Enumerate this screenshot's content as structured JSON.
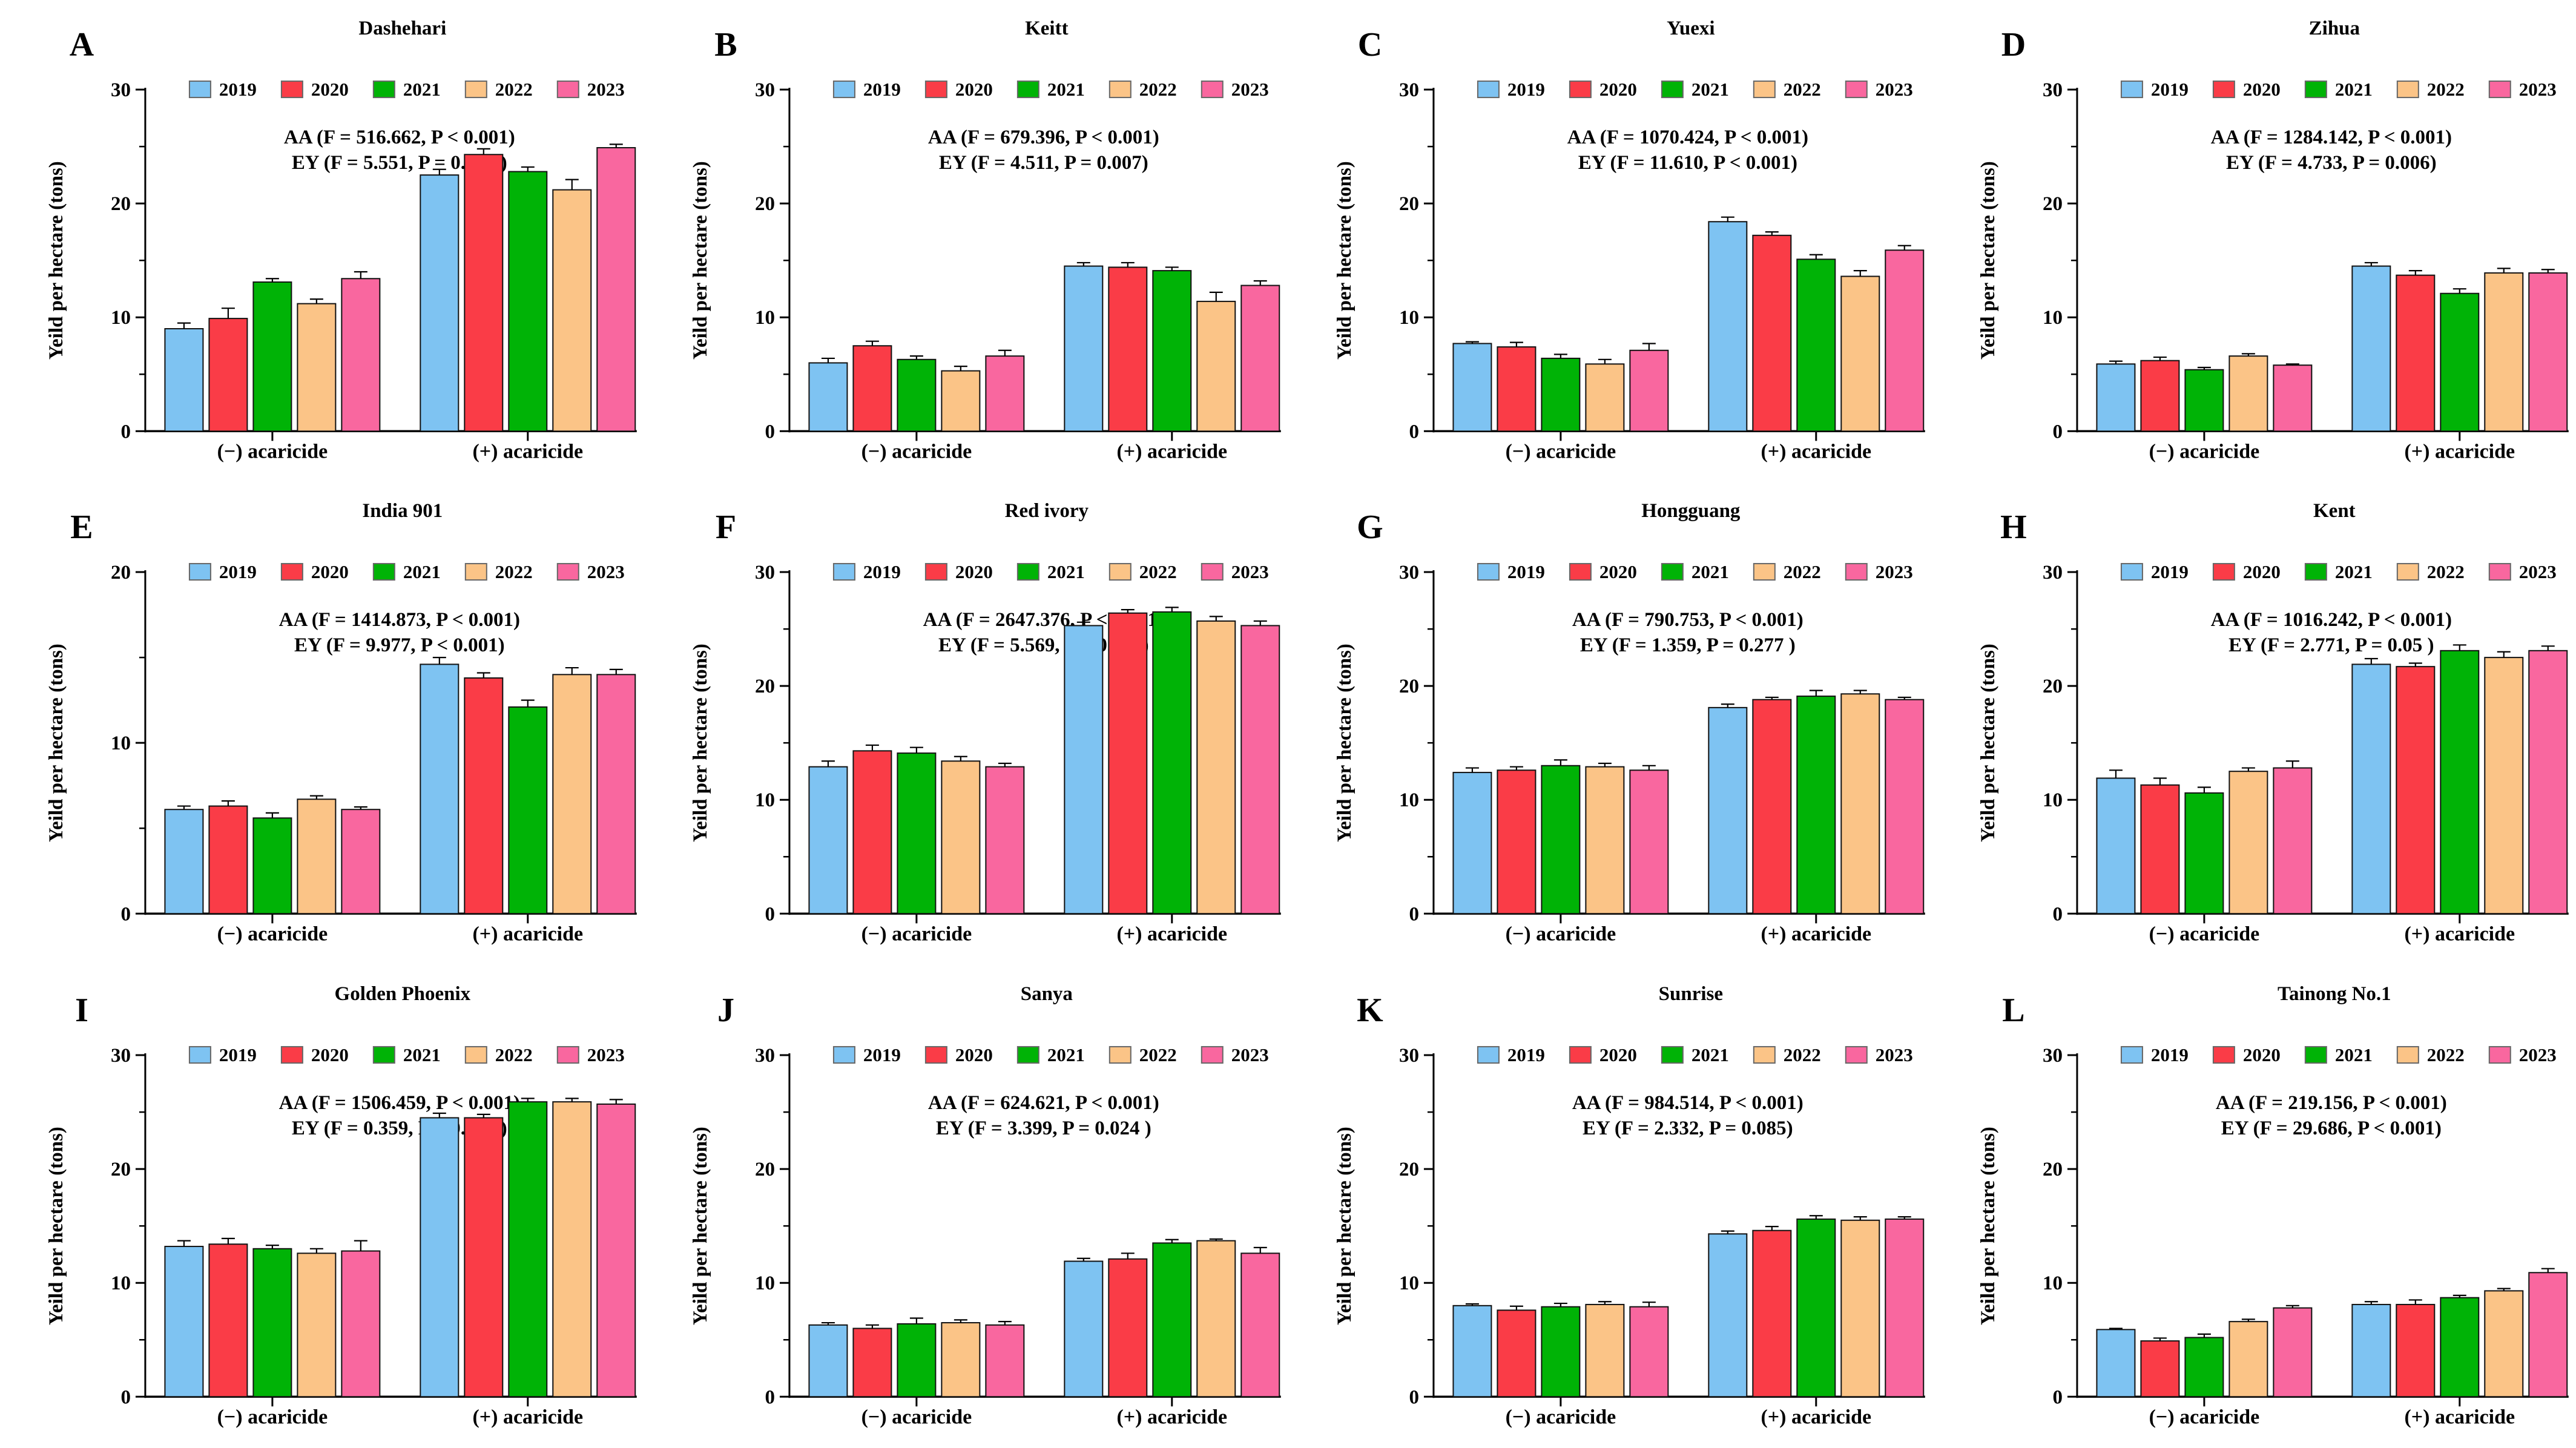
{
  "figure": {
    "y_axis_label": "Yeild per hectare (tons)",
    "x_categories": [
      "(−) acaricide",
      "(+) acaricide"
    ],
    "group_keys": [
      "minus",
      "plus"
    ],
    "legend_years": [
      "2019",
      "2020",
      "2021",
      "2022",
      "2023"
    ],
    "legend_position": "top",
    "grid_lines": "off",
    "colors": {
      "2019": "#7EC3F2",
      "2020": "#FA3C47",
      "2021": "#00B306",
      "2022": "#FBC487",
      "2023": "#F9679F"
    },
    "bar_border_color": "#111111",
    "error_bar_color": "#000000"
  },
  "chart_data": [
    {
      "type": "bar",
      "panel_letter": "A",
      "title": "Dashehari",
      "annotation_line1": "AA (F = 516.662, P < 0.001)",
      "annotation_line2": "EY (F = 5.551, P = 0.003 )",
      "categories": [
        "(−) acaricide",
        "(+) acaricide"
      ],
      "series": [
        {
          "name": "2019",
          "values": [
            9.0,
            22.5
          ],
          "errors": [
            0.5,
            0.5
          ]
        },
        {
          "name": "2020",
          "values": [
            9.9,
            24.3
          ],
          "errors": [
            0.9,
            0.5
          ]
        },
        {
          "name": "2021",
          "values": [
            13.1,
            22.8
          ],
          "errors": [
            0.3,
            0.4
          ]
        },
        {
          "name": "2022",
          "values": [
            11.2,
            21.2
          ],
          "errors": [
            0.4,
            0.9
          ]
        },
        {
          "name": "2023",
          "values": [
            13.4,
            24.9
          ],
          "errors": [
            0.6,
            0.3
          ]
        }
      ],
      "ylabel": "Yeild per hectare (tons)",
      "ylim": [
        0,
        30
      ],
      "yticks": [
        0,
        10,
        20,
        30
      ]
    },
    {
      "type": "bar",
      "panel_letter": "B",
      "title": "Keitt",
      "annotation_line1": "AA (F = 679.396, P < 0.001)",
      "annotation_line2": "EY (F = 4.511, P = 0.007)",
      "categories": [
        "(−) acaricide",
        "(+) acaricide"
      ],
      "series": [
        {
          "name": "2019",
          "values": [
            6.0,
            14.5
          ],
          "errors": [
            0.4,
            0.3
          ]
        },
        {
          "name": "2020",
          "values": [
            7.5,
            14.4
          ],
          "errors": [
            0.4,
            0.4
          ]
        },
        {
          "name": "2021",
          "values": [
            6.3,
            14.1
          ],
          "errors": [
            0.3,
            0.3
          ]
        },
        {
          "name": "2022",
          "values": [
            5.3,
            11.4
          ],
          "errors": [
            0.4,
            0.8
          ]
        },
        {
          "name": "2023",
          "values": [
            6.6,
            12.8
          ],
          "errors": [
            0.5,
            0.4
          ]
        }
      ],
      "ylabel": "Yeild per hectare (tons)",
      "ylim": [
        0,
        30
      ],
      "yticks": [
        0,
        10,
        20,
        30
      ]
    },
    {
      "type": "bar",
      "panel_letter": "C",
      "title": "Yuexi",
      "annotation_line1": "AA (F = 1070.424, P < 0.001)",
      "annotation_line2": "EY (F = 11.610, P < 0.001)",
      "categories": [
        "(−) acaricide",
        "(+) acaricide"
      ],
      "series": [
        {
          "name": "2019",
          "values": [
            7.7,
            18.4
          ],
          "errors": [
            0.15,
            0.4
          ]
        },
        {
          "name": "2020",
          "values": [
            7.4,
            17.2
          ],
          "errors": [
            0.4,
            0.3
          ]
        },
        {
          "name": "2021",
          "values": [
            6.4,
            15.1
          ],
          "errors": [
            0.35,
            0.4
          ]
        },
        {
          "name": "2022",
          "values": [
            5.9,
            13.6
          ],
          "errors": [
            0.4,
            0.5
          ]
        },
        {
          "name": "2023",
          "values": [
            7.1,
            15.9
          ],
          "errors": [
            0.6,
            0.4
          ]
        }
      ],
      "ylabel": "Yeild per hectare (tons)",
      "ylim": [
        0,
        30
      ],
      "yticks": [
        0,
        10,
        20,
        30
      ]
    },
    {
      "type": "bar",
      "panel_letter": "D",
      "title": "Zihua",
      "annotation_line1": "AA (F = 1284.142, P < 0.001)",
      "annotation_line2": "EY (F = 4.733, P = 0.006)",
      "categories": [
        "(−) acaricide",
        "(+) acaricide"
      ],
      "series": [
        {
          "name": "2019",
          "values": [
            5.9,
            14.5
          ],
          "errors": [
            0.25,
            0.3
          ]
        },
        {
          "name": "2020",
          "values": [
            6.2,
            13.7
          ],
          "errors": [
            0.3,
            0.4
          ]
        },
        {
          "name": "2021",
          "values": [
            5.4,
            12.1
          ],
          "errors": [
            0.2,
            0.4
          ]
        },
        {
          "name": "2022",
          "values": [
            6.6,
            13.9
          ],
          "errors": [
            0.2,
            0.4
          ]
        },
        {
          "name": "2023",
          "values": [
            5.8,
            13.9
          ],
          "errors": [
            0.1,
            0.3
          ]
        }
      ],
      "ylabel": "Yeild per hectare (tons)",
      "ylim": [
        0,
        30
      ],
      "yticks": [
        0,
        10,
        20,
        30
      ]
    },
    {
      "type": "bar",
      "panel_letter": "E",
      "title": "India 901",
      "annotation_line1": "AA (F = 1414.873, P < 0.001)",
      "annotation_line2": "EY (F = 9.977, P < 0.001)",
      "categories": [
        "(−) acaricide",
        "(+) acaricide"
      ],
      "series": [
        {
          "name": "2019",
          "values": [
            6.1,
            14.6
          ],
          "errors": [
            0.2,
            0.4
          ]
        },
        {
          "name": "2020",
          "values": [
            6.3,
            13.8
          ],
          "errors": [
            0.3,
            0.3
          ]
        },
        {
          "name": "2021",
          "values": [
            5.6,
            12.1
          ],
          "errors": [
            0.3,
            0.4
          ]
        },
        {
          "name": "2022",
          "values": [
            6.7,
            14.0
          ],
          "errors": [
            0.2,
            0.4
          ]
        },
        {
          "name": "2023",
          "values": [
            6.1,
            14.0
          ],
          "errors": [
            0.15,
            0.3
          ]
        }
      ],
      "ylabel": "Yeild per hectare (tons)",
      "ylim": [
        0,
        20
      ],
      "yticks": [
        0,
        10,
        20
      ]
    },
    {
      "type": "bar",
      "panel_letter": "F",
      "title": "Red ivory",
      "annotation_line1": "AA (F = 2647.376, P < 0.001)",
      "annotation_line2": "EY (F = 5.569, P = 0.003)",
      "categories": [
        "(−) acaricide",
        "(+) acaricide"
      ],
      "series": [
        {
          "name": "2019",
          "values": [
            12.9,
            25.3
          ],
          "errors": [
            0.5,
            0.3
          ]
        },
        {
          "name": "2020",
          "values": [
            14.3,
            26.4
          ],
          "errors": [
            0.5,
            0.3
          ]
        },
        {
          "name": "2021",
          "values": [
            14.1,
            26.5
          ],
          "errors": [
            0.5,
            0.4
          ]
        },
        {
          "name": "2022",
          "values": [
            13.4,
            25.7
          ],
          "errors": [
            0.4,
            0.4
          ]
        },
        {
          "name": "2023",
          "values": [
            12.9,
            25.3
          ],
          "errors": [
            0.3,
            0.4
          ]
        }
      ],
      "ylabel": "Yeild per hectare (tons)",
      "ylim": [
        0,
        30
      ],
      "yticks": [
        0,
        10,
        20,
        30
      ]
    },
    {
      "type": "bar",
      "panel_letter": "G",
      "title": "Hongguang",
      "annotation_line1": "AA (F = 790.753, P < 0.001)",
      "annotation_line2": "EY (F = 1.359, P = 0.277 )",
      "categories": [
        "(−) acaricide",
        "(+) acaricide"
      ],
      "series": [
        {
          "name": "2019",
          "values": [
            12.4,
            18.1
          ],
          "errors": [
            0.4,
            0.3
          ]
        },
        {
          "name": "2020",
          "values": [
            12.6,
            18.8
          ],
          "errors": [
            0.3,
            0.2
          ]
        },
        {
          "name": "2021",
          "values": [
            13.0,
            19.1
          ],
          "errors": [
            0.5,
            0.5
          ]
        },
        {
          "name": "2022",
          "values": [
            12.9,
            19.3
          ],
          "errors": [
            0.3,
            0.3
          ]
        },
        {
          "name": "2023",
          "values": [
            12.6,
            18.8
          ],
          "errors": [
            0.4,
            0.2
          ]
        }
      ],
      "ylabel": "Yeild per hectare (tons)",
      "ylim": [
        0,
        30
      ],
      "yticks": [
        0,
        10,
        20,
        30
      ]
    },
    {
      "type": "bar",
      "panel_letter": "H",
      "title": "Kent",
      "annotation_line1": "AA (F = 1016.242, P < 0.001)",
      "annotation_line2": "EY (F = 2.771, P = 0.05 )",
      "categories": [
        "(−) acaricide",
        "(+) acaricide"
      ],
      "series": [
        {
          "name": "2019",
          "values": [
            11.9,
            21.9
          ],
          "errors": [
            0.7,
            0.5
          ]
        },
        {
          "name": "2020",
          "values": [
            11.3,
            21.7
          ],
          "errors": [
            0.6,
            0.3
          ]
        },
        {
          "name": "2021",
          "values": [
            10.6,
            23.1
          ],
          "errors": [
            0.5,
            0.5
          ]
        },
        {
          "name": "2022",
          "values": [
            12.5,
            22.5
          ],
          "errors": [
            0.3,
            0.5
          ]
        },
        {
          "name": "2023",
          "values": [
            12.8,
            23.1
          ],
          "errors": [
            0.6,
            0.4
          ]
        }
      ],
      "ylabel": "Yeild per hectare (tons)",
      "ylim": [
        0,
        30
      ],
      "yticks": [
        0,
        10,
        20,
        30
      ]
    },
    {
      "type": "bar",
      "panel_letter": "I",
      "title": "Golden Phoenix",
      "annotation_line1": "AA (F = 1506.459, P < 0.001)",
      "annotation_line2": "EY (F = 0.359, P = 0.835 )",
      "categories": [
        "(−) acaricide",
        "(+) acaricide"
      ],
      "series": [
        {
          "name": "2019",
          "values": [
            13.2,
            24.5
          ],
          "errors": [
            0.5,
            0.4
          ]
        },
        {
          "name": "2020",
          "values": [
            13.4,
            24.5
          ],
          "errors": [
            0.5,
            0.3
          ]
        },
        {
          "name": "2021",
          "values": [
            13.0,
            25.9
          ],
          "errors": [
            0.3,
            0.3
          ]
        },
        {
          "name": "2022",
          "values": [
            12.6,
            25.9
          ],
          "errors": [
            0.4,
            0.3
          ]
        },
        {
          "name": "2023",
          "values": [
            12.8,
            25.7
          ],
          "errors": [
            0.9,
            0.4
          ]
        }
      ],
      "ylabel": "Yeild per hectare (tons)",
      "ylim": [
        0,
        30
      ],
      "yticks": [
        0,
        10,
        20,
        30
      ]
    },
    {
      "type": "bar",
      "panel_letter": "J",
      "title": "Sanya",
      "annotation_line1": "AA (F = 624.621, P < 0.001)",
      "annotation_line2": "EY (F = 3.399, P = 0.024 )",
      "categories": [
        "(−) acaricide",
        "(+) acaricide"
      ],
      "series": [
        {
          "name": "2019",
          "values": [
            6.3,
            11.9
          ],
          "errors": [
            0.2,
            0.25
          ]
        },
        {
          "name": "2020",
          "values": [
            6.0,
            12.1
          ],
          "errors": [
            0.3,
            0.5
          ]
        },
        {
          "name": "2021",
          "values": [
            6.4,
            13.5
          ],
          "errors": [
            0.5,
            0.3
          ]
        },
        {
          "name": "2022",
          "values": [
            6.5,
            13.7
          ],
          "errors": [
            0.25,
            0.15
          ]
        },
        {
          "name": "2023",
          "values": [
            6.3,
            12.6
          ],
          "errors": [
            0.3,
            0.5
          ]
        }
      ],
      "ylabel": "Yeild per hectare (tons)",
      "ylim": [
        0,
        30
      ],
      "yticks": [
        0,
        10,
        20,
        30
      ]
    },
    {
      "type": "bar",
      "panel_letter": "K",
      "title": "Sunrise",
      "annotation_line1": "AA (F = 984.514, P < 0.001)",
      "annotation_line2": "EY (F = 2.332, P = 0.085)",
      "categories": [
        "(−) acaricide",
        "(+) acaricide"
      ],
      "series": [
        {
          "name": "2019",
          "values": [
            8.0,
            14.3
          ],
          "errors": [
            0.15,
            0.25
          ]
        },
        {
          "name": "2020",
          "values": [
            7.6,
            14.6
          ],
          "errors": [
            0.35,
            0.35
          ]
        },
        {
          "name": "2021",
          "values": [
            7.9,
            15.6
          ],
          "errors": [
            0.3,
            0.3
          ]
        },
        {
          "name": "2022",
          "values": [
            8.1,
            15.5
          ],
          "errors": [
            0.25,
            0.3
          ]
        },
        {
          "name": "2023",
          "values": [
            7.9,
            15.6
          ],
          "errors": [
            0.4,
            0.2
          ]
        }
      ],
      "ylabel": "Yeild per hectare (tons)",
      "ylim": [
        0,
        30
      ],
      "yticks": [
        0,
        10,
        20,
        30
      ]
    },
    {
      "type": "bar",
      "panel_letter": "L",
      "title": "Tainong No.1",
      "annotation_line1": "AA (F = 219.156, P < 0.001)",
      "annotation_line2": "EY (F = 29.686, P < 0.001)",
      "categories": [
        "(−) acaricide",
        "(+) acaricide"
      ],
      "series": [
        {
          "name": "2019",
          "values": [
            5.9,
            8.1
          ],
          "errors": [
            0.1,
            0.25
          ]
        },
        {
          "name": "2020",
          "values": [
            4.9,
            8.1
          ],
          "errors": [
            0.25,
            0.4
          ]
        },
        {
          "name": "2021",
          "values": [
            5.2,
            8.7
          ],
          "errors": [
            0.3,
            0.2
          ]
        },
        {
          "name": "2022",
          "values": [
            6.6,
            9.3
          ],
          "errors": [
            0.2,
            0.2
          ]
        },
        {
          "name": "2023",
          "values": [
            7.8,
            10.9
          ],
          "errors": [
            0.2,
            0.35
          ]
        }
      ],
      "ylabel": "Yeild per hectare (tons)",
      "ylim": [
        0,
        30
      ],
      "yticks": [
        0,
        10,
        20,
        30
      ]
    }
  ]
}
